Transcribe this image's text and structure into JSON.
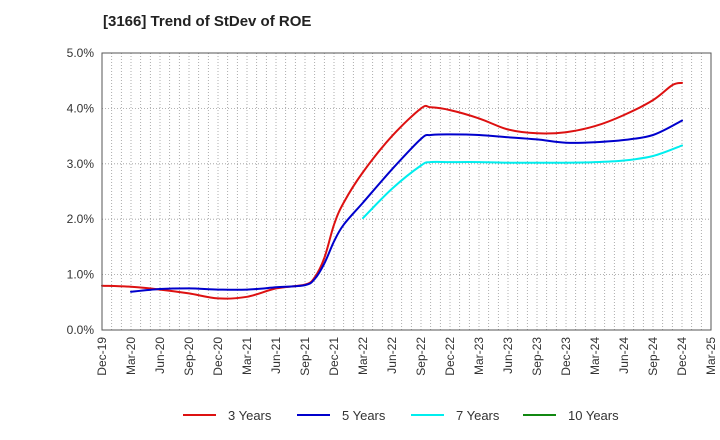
{
  "chart_data": {
    "type": "line",
    "title": "[3166]  Trend of StDev of ROE",
    "xlabel": "",
    "ylabel": "",
    "x_ticks": [
      "Dec-19",
      "Mar-20",
      "Jun-20",
      "Sep-20",
      "Dec-20",
      "Mar-21",
      "Jun-21",
      "Sep-21",
      "Dec-21",
      "Mar-22",
      "Jun-22",
      "Sep-22",
      "Dec-22",
      "Mar-23",
      "Jun-23",
      "Sep-23",
      "Dec-23",
      "Mar-24",
      "Jun-24",
      "Sep-24",
      "Dec-24",
      "Mar-25"
    ],
    "y_ticks": [
      "0.0%",
      "1.0%",
      "2.0%",
      "3.0%",
      "4.0%",
      "5.0%"
    ],
    "ylim": [
      0,
      5
    ],
    "y_unit": "%",
    "grid": true,
    "legend_position": "bottom",
    "series": [
      {
        "name": "3 Years",
        "color": "#dd1111",
        "points": [
          [
            "Dec-19",
            0.8
          ],
          [
            "Mar-20",
            0.78
          ],
          [
            "Jun-20",
            0.73
          ],
          [
            "Sep-20",
            0.66
          ],
          [
            "Dec-20",
            0.57
          ],
          [
            "Mar-21",
            0.6
          ],
          [
            "Jun-21",
            0.75
          ],
          [
            "Sep-21",
            0.82
          ],
          [
            "Oct-21",
            0.95
          ],
          [
            "Nov-21",
            1.3
          ],
          [
            "Dec-21",
            1.9
          ],
          [
            "Jan-22",
            2.3
          ],
          [
            "Mar-22",
            2.85
          ],
          [
            "Jun-22",
            3.5
          ],
          [
            "Sep-22",
            4.0
          ],
          [
            "Oct-22",
            4.02
          ],
          [
            "Dec-22",
            3.97
          ],
          [
            "Mar-23",
            3.82
          ],
          [
            "Jun-23",
            3.62
          ],
          [
            "Sep-23",
            3.55
          ],
          [
            "Dec-23",
            3.57
          ],
          [
            "Mar-24",
            3.68
          ],
          [
            "Jun-24",
            3.88
          ],
          [
            "Sep-24",
            4.15
          ],
          [
            "Nov-24",
            4.42
          ],
          [
            "Dec-24",
            4.46
          ]
        ]
      },
      {
        "name": "5 Years",
        "color": "#0000cc",
        "points": [
          [
            "Mar-20",
            0.69
          ],
          [
            "Jun-20",
            0.74
          ],
          [
            "Sep-20",
            0.75
          ],
          [
            "Dec-20",
            0.73
          ],
          [
            "Mar-21",
            0.73
          ],
          [
            "Jun-21",
            0.77
          ],
          [
            "Sep-21",
            0.81
          ],
          [
            "Oct-21",
            0.92
          ],
          [
            "Nov-21",
            1.2
          ],
          [
            "Dec-21",
            1.6
          ],
          [
            "Jan-22",
            1.9
          ],
          [
            "Mar-22",
            2.3
          ],
          [
            "Jun-22",
            2.9
          ],
          [
            "Sep-22",
            3.45
          ],
          [
            "Oct-22",
            3.52
          ],
          [
            "Dec-22",
            3.53
          ],
          [
            "Mar-23",
            3.52
          ],
          [
            "Jun-23",
            3.48
          ],
          [
            "Sep-23",
            3.44
          ],
          [
            "Dec-23",
            3.38
          ],
          [
            "Mar-24",
            3.39
          ],
          [
            "Jun-24",
            3.43
          ],
          [
            "Sep-24",
            3.52
          ],
          [
            "Dec-24",
            3.78
          ]
        ]
      },
      {
        "name": "7 Years",
        "color": "#00eeee",
        "points": [
          [
            "Mar-22",
            2.02
          ],
          [
            "Jun-22",
            2.55
          ],
          [
            "Sep-22",
            2.97
          ],
          [
            "Oct-22",
            3.03
          ],
          [
            "Dec-22",
            3.03
          ],
          [
            "Mar-23",
            3.03
          ],
          [
            "Jun-23",
            3.02
          ],
          [
            "Sep-23",
            3.02
          ],
          [
            "Dec-23",
            3.02
          ],
          [
            "Mar-24",
            3.03
          ],
          [
            "Jun-24",
            3.06
          ],
          [
            "Sep-24",
            3.14
          ],
          [
            "Dec-24",
            3.33
          ]
        ]
      },
      {
        "name": "10 Years",
        "color": "#118811",
        "points": []
      }
    ]
  }
}
